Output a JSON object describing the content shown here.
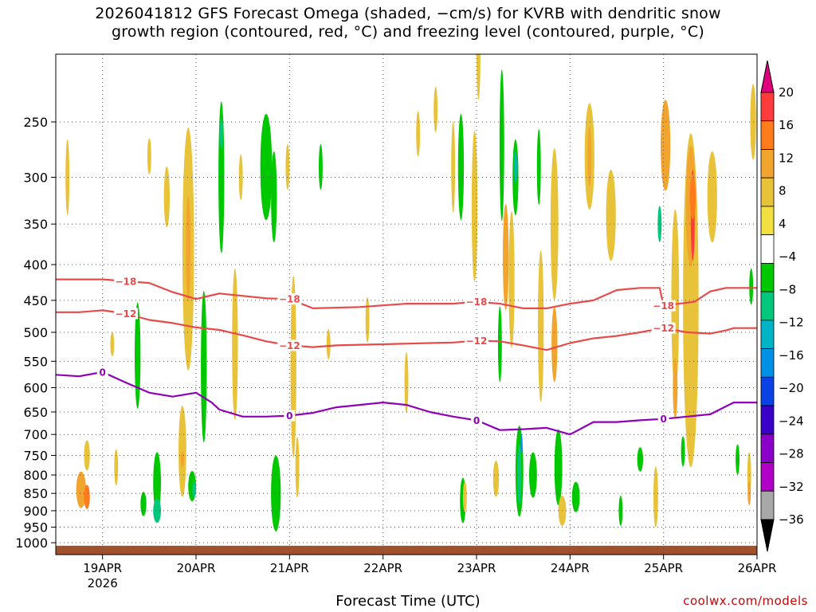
{
  "title": {
    "line1": "2026041812 GFS Forecast Omega (shaded, −cm/s) for KVRB with dendritic snow",
    "line2": "growth region (contoured, red, °C) and freezing level (contoured, purple, °C)"
  },
  "xlabel": "Forecast Time (UTC)",
  "credit": "coolwx.com/models",
  "chart_data": {
    "type": "heatmap",
    "title": "2026041812 GFS Forecast Omega (shaded, −cm/s) for KVRB with dendritic snow growth region (contoured, red, °C) and freezing level (contoured, purple, °C)",
    "xlabel": "Forecast Time (UTC)",
    "ylabel": "",
    "x_ticks": [
      "19APR",
      "20APR",
      "21APR",
      "22APR",
      "23APR",
      "24APR",
      "25APR",
      "26APR"
    ],
    "x_tick_hours": [
      12,
      36,
      60,
      84,
      108,
      132,
      156,
      180
    ],
    "x_year_label": "2026",
    "xlim_hours": [
      0,
      180
    ],
    "y_ticks": [
      250,
      300,
      350,
      400,
      450,
      500,
      550,
      600,
      650,
      700,
      750,
      800,
      850,
      900,
      950,
      1000
    ],
    "ylim": [
      200,
      1040
    ],
    "y_scale": "log",
    "y_inverted": true,
    "grid": true,
    "colorbar": {
      "labels": [
        "20",
        "16",
        "12",
        "8",
        "4",
        "−4",
        "−8",
        "−12",
        "−16",
        "−20",
        "−24",
        "−28",
        "−32",
        "−36"
      ],
      "colors": [
        "#e0007e",
        "#ff3b3b",
        "#ff7b1c",
        "#f2a52e",
        "#e8c33a",
        "#f2e040",
        "#ffffff",
        "#00c800",
        "#00c77c",
        "#00b4c8",
        "#0090e6",
        "#0a42e6",
        "#3a00c8",
        "#8a00c8",
        "#b000c8",
        "#a8a8a8",
        "#000000"
      ]
    },
    "series": [
      {
        "name": "-18",
        "color": "#e84a4a",
        "hours": [
          0,
          12,
          24,
          30,
          36,
          42,
          54,
          60,
          66,
          78,
          90,
          102,
          108,
          114,
          120,
          126,
          132,
          138,
          144,
          150,
          155,
          156,
          164,
          168,
          172,
          180
        ],
        "values": [
          420,
          420,
          425,
          438,
          448,
          440,
          447,
          448,
          462,
          460,
          455,
          455,
          452,
          455,
          462,
          462,
          455,
          450,
          435,
          432,
          432,
          458,
          452,
          437,
          432,
          432
        ],
        "label_hours": [
          18,
          60,
          108,
          156
        ]
      },
      {
        "name": "-12",
        "color": "#e84a4a",
        "hours": [
          0,
          6,
          12,
          18,
          24,
          30,
          36,
          42,
          48,
          54,
          60,
          66,
          72,
          84,
          96,
          102,
          108,
          114,
          120,
          126,
          132,
          138,
          144,
          150,
          156,
          162,
          168,
          172,
          174,
          180
        ],
        "values": [
          468,
          468,
          465,
          470,
          480,
          485,
          492,
          496,
          505,
          515,
          522,
          525,
          522,
          520,
          518,
          517,
          514,
          515,
          522,
          530,
          518,
          510,
          506,
          500,
          493,
          500,
          502,
          497,
          493,
          493
        ],
        "label_hours": [
          18,
          60,
          108,
          156
        ]
      },
      {
        "name": "0",
        "color": "#9000b8",
        "hours": [
          0,
          6,
          12,
          18,
          24,
          30,
          36,
          40,
          42,
          48,
          54,
          60,
          66,
          72,
          78,
          84,
          90,
          96,
          102,
          108,
          114,
          120,
          126,
          132,
          138,
          144,
          150,
          156,
          162,
          168,
          174,
          180
        ],
        "values": [
          575,
          578,
          570,
          590,
          610,
          618,
          610,
          630,
          645,
          660,
          660,
          658,
          652,
          640,
          635,
          630,
          635,
          650,
          660,
          668,
          690,
          688,
          685,
          700,
          672,
          672,
          668,
          665,
          660,
          655,
          630,
          630
        ],
        "label_hours": [
          12,
          60,
          108,
          156
        ]
      }
    ],
    "omega_cells": [
      {
        "h": 6.5,
        "p": 840,
        "w": 2.5,
        "d": 0.12,
        "v": 8
      },
      {
        "h": 8,
        "p": 860,
        "w": 1.5,
        "d": 0.08,
        "v": 12
      },
      {
        "h": 8,
        "p": 750,
        "w": 1.5,
        "d": 0.1,
        "v": 4
      },
      {
        "h": 3,
        "p": 300,
        "w": 1,
        "d": 0.25,
        "v": 4
      },
      {
        "h": 14.5,
        "p": 520,
        "w": 1,
        "d": 0.08,
        "v": 4
      },
      {
        "h": 15.5,
        "p": 780,
        "w": 1,
        "d": 0.12,
        "v": 4
      },
      {
        "h": 21,
        "p": 540,
        "w": 1.5,
        "d": 0.35,
        "v": -8
      },
      {
        "h": 22.5,
        "p": 880,
        "w": 1.5,
        "d": 0.08,
        "v": -4
      },
      {
        "h": 24,
        "p": 280,
        "w": 1,
        "d": 0.12,
        "v": 4
      },
      {
        "h": 26,
        "p": 820,
        "w": 2,
        "d": 0.2,
        "v": -8
      },
      {
        "h": 26,
        "p": 900,
        "w": 2,
        "d": 0.08,
        "v": -12
      },
      {
        "h": 28.5,
        "p": 320,
        "w": 1.5,
        "d": 0.2,
        "v": 4
      },
      {
        "h": 32.5,
        "p": 740,
        "w": 2,
        "d": 0.3,
        "v": 4
      },
      {
        "h": 32.5,
        "p": 760,
        "w": 1,
        "d": 0.05,
        "v": 8
      },
      {
        "h": 34,
        "p": 380,
        "w": 3,
        "d": 0.8,
        "v": 4
      },
      {
        "h": 34,
        "p": 380,
        "w": 1.2,
        "d": 0.35,
        "v": 8
      },
      {
        "h": 35,
        "p": 830,
        "w": 2,
        "d": 0.1,
        "v": -8
      },
      {
        "h": 35.5,
        "p": 840,
        "w": 1,
        "d": 0.05,
        "v": -12
      },
      {
        "h": 38,
        "p": 560,
        "w": 1.5,
        "d": 0.5,
        "v": -8
      },
      {
        "h": 42.5,
        "p": 300,
        "w": 1.5,
        "d": 0.5,
        "v": -8
      },
      {
        "h": 42.5,
        "p": 260,
        "w": 0.8,
        "d": 0.1,
        "v": -12
      },
      {
        "h": 46,
        "p": 520,
        "w": 1.5,
        "d": 0.5,
        "v": 4
      },
      {
        "h": 47.5,
        "p": 300,
        "w": 1,
        "d": 0.15,
        "v": 4
      },
      {
        "h": 54,
        "p": 290,
        "w": 3,
        "d": 0.35,
        "v": -8
      },
      {
        "h": 56,
        "p": 320,
        "w": 1.5,
        "d": 0.3,
        "v": -8
      },
      {
        "h": 56.5,
        "p": 850,
        "w": 2.5,
        "d": 0.25,
        "v": -8
      },
      {
        "h": 59.5,
        "p": 290,
        "w": 1,
        "d": 0.15,
        "v": 4
      },
      {
        "h": 61,
        "p": 560,
        "w": 1.5,
        "d": 0.6,
        "v": 4
      },
      {
        "h": 62,
        "p": 780,
        "w": 1,
        "d": 0.2,
        "v": 4
      },
      {
        "h": 68,
        "p": 290,
        "w": 1,
        "d": 0.15,
        "v": -8
      },
      {
        "h": 70,
        "p": 520,
        "w": 1,
        "d": 0.1,
        "v": 4
      },
      {
        "h": 80,
        "p": 480,
        "w": 1,
        "d": 0.15,
        "v": 4
      },
      {
        "h": 90,
        "p": 590,
        "w": 1,
        "d": 0.2,
        "v": 4
      },
      {
        "h": 93,
        "p": 260,
        "w": 1,
        "d": 0.15,
        "v": 4
      },
      {
        "h": 97.5,
        "p": 240,
        "w": 1,
        "d": 0.15,
        "v": 4
      },
      {
        "h": 102,
        "p": 290,
        "w": 1,
        "d": 0.3,
        "v": 4
      },
      {
        "h": 104,
        "p": 290,
        "w": 1.5,
        "d": 0.35,
        "v": -8
      },
      {
        "h": 104.5,
        "p": 870,
        "w": 1.5,
        "d": 0.15,
        "v": -8
      },
      {
        "h": 105,
        "p": 860,
        "w": 1,
        "d": 0.1,
        "v": 4
      },
      {
        "h": 107.5,
        "p": 330,
        "w": 1.5,
        "d": 0.5,
        "v": 4
      },
      {
        "h": 108.5,
        "p": 200,
        "w": 1,
        "d": 0.3,
        "v": 4
      },
      {
        "h": 113,
        "p": 810,
        "w": 1.5,
        "d": 0.12,
        "v": 4
      },
      {
        "h": 114,
        "p": 520,
        "w": 1,
        "d": 0.25,
        "v": -8
      },
      {
        "h": 114.5,
        "p": 270,
        "w": 1.2,
        "d": 0.5,
        "v": -8
      },
      {
        "h": 115.5,
        "p": 390,
        "w": 1.5,
        "d": 0.35,
        "v": 8
      },
      {
        "h": 117,
        "p": 420,
        "w": 1.5,
        "d": 0.45,
        "v": 4
      },
      {
        "h": 118,
        "p": 300,
        "w": 1.5,
        "d": 0.25,
        "v": -8
      },
      {
        "h": 118,
        "p": 290,
        "w": 0.8,
        "d": 0.1,
        "v": -16
      },
      {
        "h": 119,
        "p": 790,
        "w": 2,
        "d": 0.3,
        "v": -8
      },
      {
        "h": 119,
        "p": 800,
        "w": 1,
        "d": 0.2,
        "v": -12
      },
      {
        "h": 119.5,
        "p": 720,
        "w": 0.6,
        "d": 0.06,
        "v": -20
      },
      {
        "h": 122.5,
        "p": 800,
        "w": 2,
        "d": 0.15,
        "v": -8
      },
      {
        "h": 124,
        "p": 290,
        "w": 1,
        "d": 0.25,
        "v": -8
      },
      {
        "h": 124.5,
        "p": 490,
        "w": 1.5,
        "d": 0.5,
        "v": 4
      },
      {
        "h": 128,
        "p": 350,
        "w": 2,
        "d": 0.5,
        "v": 4
      },
      {
        "h": 128,
        "p": 520,
        "w": 1.5,
        "d": 0.25,
        "v": 8
      },
      {
        "h": 129,
        "p": 780,
        "w": 2,
        "d": 0.25,
        "v": -8
      },
      {
        "h": 130,
        "p": 900,
        "w": 2,
        "d": 0.1,
        "v": 4
      },
      {
        "h": 133.5,
        "p": 860,
        "w": 2,
        "d": 0.1,
        "v": -8
      },
      {
        "h": 137,
        "p": 280,
        "w": 2.5,
        "d": 0.35,
        "v": 4
      },
      {
        "h": 137,
        "p": 280,
        "w": 1,
        "d": 0.2,
        "v": 8
      },
      {
        "h": 142.5,
        "p": 340,
        "w": 2.5,
        "d": 0.3,
        "v": 4
      },
      {
        "h": 145,
        "p": 900,
        "w": 1,
        "d": 0.1,
        "v": -8
      },
      {
        "h": 150,
        "p": 760,
        "w": 1.5,
        "d": 0.08,
        "v": -8
      },
      {
        "h": 154,
        "p": 860,
        "w": 1.2,
        "d": 0.2,
        "v": 4
      },
      {
        "h": 155,
        "p": 350,
        "w": 1,
        "d": 0.12,
        "v": -12
      },
      {
        "h": 156.5,
        "p": 270,
        "w": 2.5,
        "d": 0.3,
        "v": 8
      },
      {
        "h": 159,
        "p": 450,
        "w": 2,
        "d": 0.6,
        "v": 4
      },
      {
        "h": 159,
        "p": 600,
        "w": 1.2,
        "d": 0.2,
        "v": 8
      },
      {
        "h": 161,
        "p": 740,
        "w": 1,
        "d": 0.1,
        "v": -8
      },
      {
        "h": 163,
        "p": 450,
        "w": 4,
        "d": 1.1,
        "v": 4
      },
      {
        "h": 163,
        "p": 330,
        "w": 2.5,
        "d": 0.4,
        "v": 8
      },
      {
        "h": 163.5,
        "p": 340,
        "w": 1,
        "d": 0.3,
        "v": 16
      },
      {
        "h": 163.5,
        "p": 320,
        "w": 1.5,
        "d": 0.15,
        "v": 12
      },
      {
        "h": 168.5,
        "p": 320,
        "w": 2.5,
        "d": 0.3,
        "v": 4
      },
      {
        "h": 175,
        "p": 760,
        "w": 1,
        "d": 0.1,
        "v": -8
      },
      {
        "h": 178,
        "p": 800,
        "w": 1,
        "d": 0.15,
        "v": 4
      },
      {
        "h": 178,
        "p": 850,
        "w": 0.8,
        "d": 0.08,
        "v": 8
      },
      {
        "h": 178.5,
        "p": 430,
        "w": 1,
        "d": 0.12,
        "v": -8
      },
      {
        "h": 179,
        "p": 250,
        "w": 1.5,
        "d": 0.25,
        "v": 4
      }
    ]
  }
}
